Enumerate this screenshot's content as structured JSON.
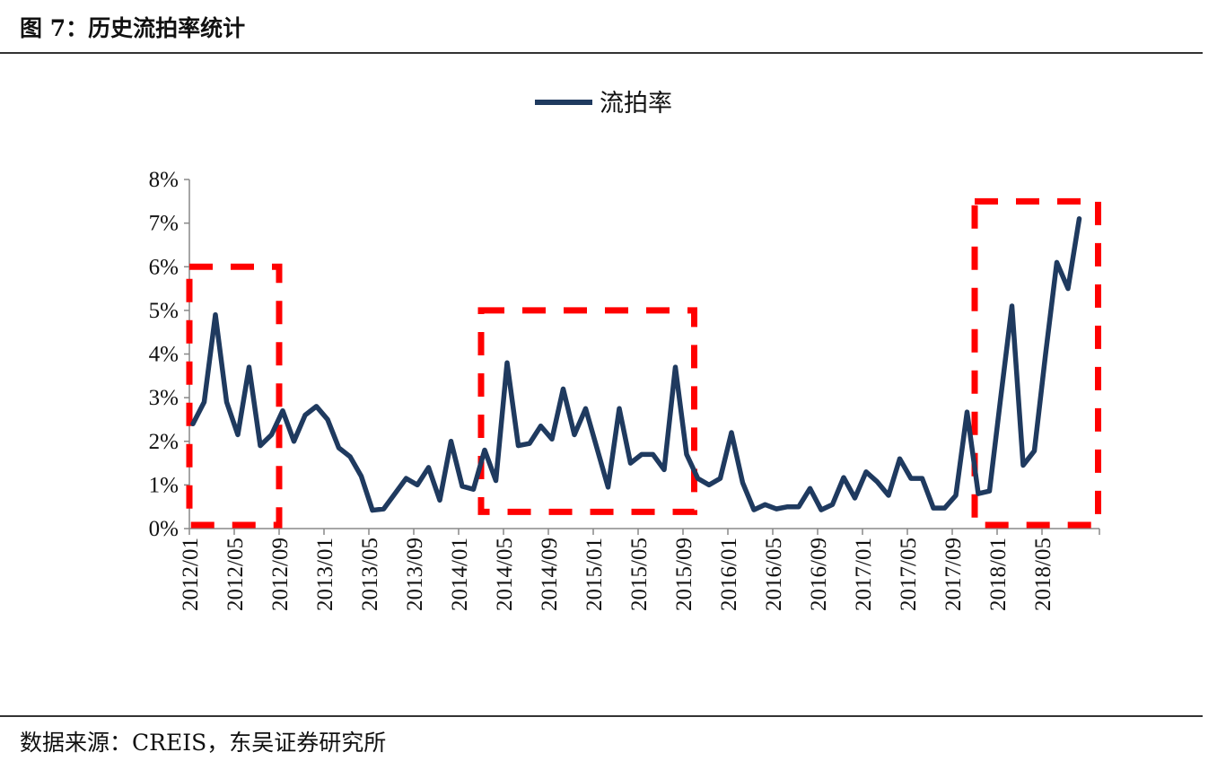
{
  "header": {
    "title": "图 7：历史流拍率统计"
  },
  "footer": {
    "source": "数据来源：CREIS，东吴证券研究所"
  },
  "chart_data": {
    "type": "line",
    "title": "",
    "xlabel": "",
    "ylabel": "",
    "legend": {
      "placement": "top-center",
      "entries": [
        "流拍率"
      ]
    },
    "ylim": [
      0,
      8
    ],
    "yticks": [
      "0%",
      "1%",
      "2%",
      "3%",
      "4%",
      "5%",
      "6%",
      "7%",
      "8%"
    ],
    "xticks": [
      "2012/01",
      "2012/05",
      "2012/09",
      "2013/01",
      "2013/05",
      "2013/09",
      "2014/01",
      "2014/05",
      "2014/09",
      "2015/01",
      "2015/05",
      "2015/09",
      "2016/01",
      "2016/05",
      "2016/09",
      "2017/01",
      "2017/05",
      "2017/09",
      "2018/01",
      "2018/05"
    ],
    "x_start": "2012/01",
    "x_step_months": 1,
    "grid": false,
    "colors": {
      "line": "#1f3a5f",
      "annotation": "#ff0000"
    },
    "series": [
      {
        "name": "流拍率",
        "unit": "%",
        "values": [
          2.4,
          2.9,
          4.9,
          2.9,
          2.15,
          3.7,
          1.9,
          2.15,
          2.7,
          2.0,
          2.6,
          2.8,
          2.5,
          1.85,
          1.65,
          1.2,
          0.42,
          0.45,
          0.8,
          1.15,
          1.0,
          1.4,
          0.65,
          2.0,
          0.97,
          0.9,
          1.8,
          1.1,
          3.8,
          1.9,
          1.95,
          2.35,
          2.05,
          3.2,
          2.15,
          2.75,
          1.85,
          0.95,
          2.75,
          1.5,
          1.7,
          1.7,
          1.35,
          3.7,
          1.7,
          1.15,
          1.0,
          1.15,
          2.2,
          1.05,
          0.43,
          0.55,
          0.45,
          0.5,
          0.5,
          0.92,
          0.43,
          0.55,
          1.17,
          0.7,
          1.3,
          1.07,
          0.76,
          1.6,
          1.15,
          1.15,
          0.47,
          0.47,
          0.76,
          2.67,
          0.8,
          0.86,
          3.0,
          5.1,
          1.45,
          1.78,
          4.0,
          6.1,
          5.5,
          7.1
        ]
      }
    ],
    "annotations": [
      {
        "type": "dashed-box",
        "x_from": "2012/01",
        "x_to": "2012/09",
        "y_from": 0,
        "y_to": 6
      },
      {
        "type": "dashed-box",
        "x_from": "2014/03",
        "x_to": "2015/10",
        "y_from": 0.3,
        "y_to": 5
      },
      {
        "type": "dashed-box",
        "x_from": "2017/11",
        "x_to": "2018/10",
        "y_from": 0,
        "y_to": 7.5
      }
    ]
  }
}
